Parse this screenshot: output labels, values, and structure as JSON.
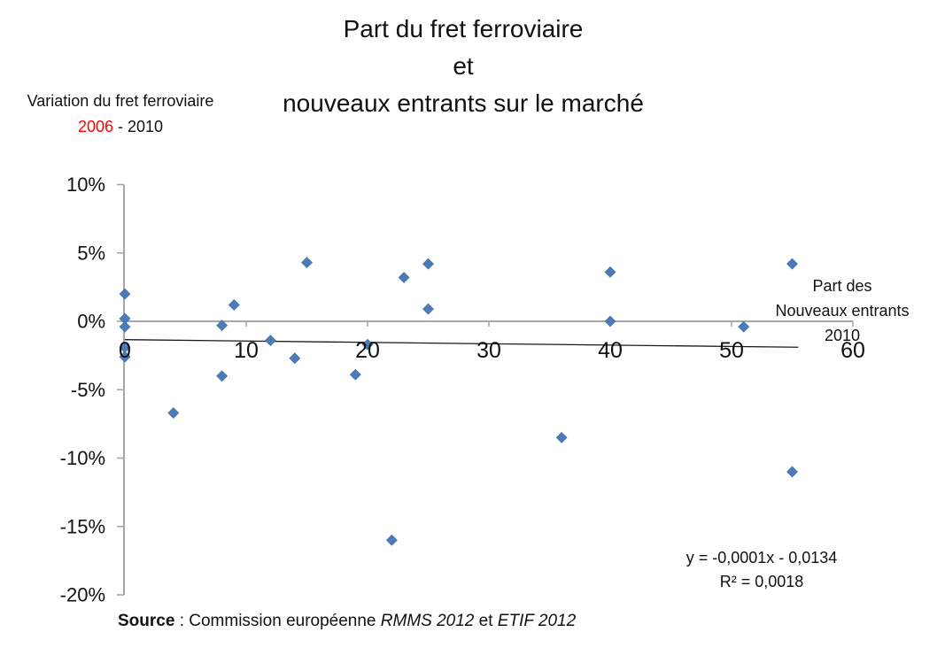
{
  "title": {
    "line1": "Part du fret ferroviaire",
    "line2": "et",
    "line3": "nouveaux entrants sur le marché"
  },
  "y_axis_title": {
    "line1": "Variation du fret ferroviaire",
    "year_start": "2006",
    "separator": " - ",
    "year_end": "2010"
  },
  "x_axis_title": {
    "line1": "Part des",
    "line2": "Nouveaux entrants",
    "line3": "2010"
  },
  "annotations": {
    "equation": "y = -0,0001x - 0,0134",
    "r_squared": "R² = 0,0018"
  },
  "source": {
    "label": "Source",
    "separator": " : ",
    "text1": "Commission européenne ",
    "italic1": "RMMS 2012",
    "text2": " et ",
    "italic2": "ETIF 2012"
  },
  "colors": {
    "marker": "#4C7CB7",
    "marker_edge": "#3E6CA2",
    "axis": "#A6A6A6",
    "trend": "#1a1a1a",
    "accent_red": "#FF0000",
    "text": "#111111"
  },
  "chart_data": {
    "type": "scatter",
    "title": "Part du fret ferroviaire et nouveaux entrants sur le marché",
    "xlabel": "Part des Nouveaux entrants 2010",
    "ylabel": "Variation du fret ferroviaire 2006 - 2010",
    "xlim": [
      0,
      60
    ],
    "ylim": [
      -20,
      10
    ],
    "grid": false,
    "x_ticks": [
      0,
      10,
      20,
      30,
      40,
      50,
      60
    ],
    "y_tick_labels": [
      "10%",
      "5%",
      "0%",
      "-5%",
      "-10%",
      "-15%",
      "-20%"
    ],
    "y_tick_values": [
      10,
      5,
      0,
      -5,
      -10,
      -15,
      -20
    ],
    "points": [
      [
        0,
        2.0
      ],
      [
        0,
        0.2
      ],
      [
        0,
        -0.4
      ],
      [
        0,
        -1.9
      ],
      [
        0,
        -2.6
      ],
      [
        4,
        -6.7
      ],
      [
        8,
        -0.3
      ],
      [
        8,
        -4.0
      ],
      [
        9,
        1.2
      ],
      [
        12,
        -1.4
      ],
      [
        14,
        -2.7
      ],
      [
        15,
        4.3
      ],
      [
        19,
        -3.9
      ],
      [
        20,
        -1.7
      ],
      [
        22,
        -16.0
      ],
      [
        23,
        3.2
      ],
      [
        25,
        4.2
      ],
      [
        25,
        0.9
      ],
      [
        36,
        -8.5
      ],
      [
        40,
        3.6
      ],
      [
        40,
        0.0
      ],
      [
        51,
        -0.4
      ],
      [
        55,
        4.2
      ],
      [
        55,
        -11.0
      ]
    ],
    "trendline": {
      "slope": -0.0001,
      "intercept": -0.0134,
      "x_range": [
        0,
        55.5
      ],
      "equation_label": "y = -0,0001x - 0,0134",
      "r2_label": "R² = 0,0018"
    }
  }
}
